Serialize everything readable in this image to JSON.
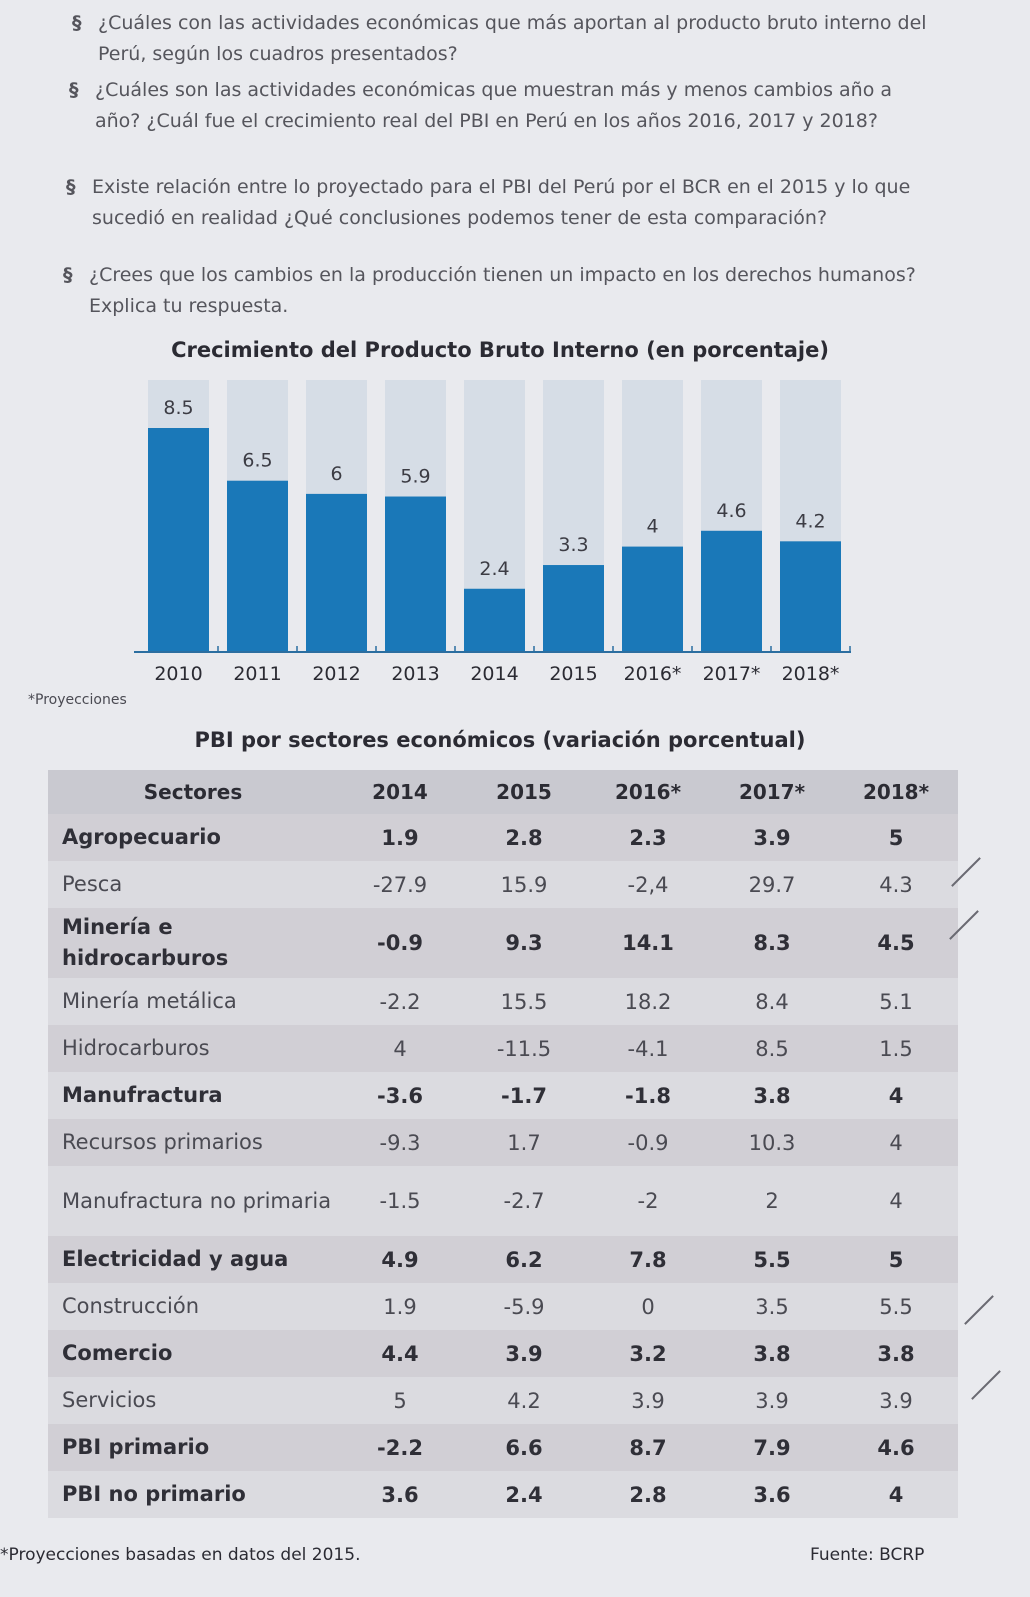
{
  "questions": {
    "bullet": "§",
    "q1": "¿Cuáles con las actividades económicas que más aportan al producto bruto interno del Perú, según los cuadros presentados?",
    "q2": "¿Cuáles son las actividades económicas que muestran más y menos cambios año a año? ¿Cuál fue el crecimiento real del PBI en Perú en los años 2016, 2017 y 2018?",
    "q3": "Existe relación entre lo proyectado para el PBI del Perú por el BCR en el 2015 y lo que sucedió en realidad ¿Qué conclusiones podemos tener de esta comparación?",
    "q4": "¿Crees que los cambios en la producción tienen un impacto en los derechos humanos? Explica tu respuesta."
  },
  "chart_data": {
    "type": "bar",
    "title": "Crecimiento del Producto Bruto Interno (en porcentaje)",
    "categories": [
      "2010",
      "2011",
      "2012",
      "2013",
      "2014",
      "2015",
      "2016*",
      "2017*",
      "2018*"
    ],
    "values": [
      8.5,
      6.5,
      6,
      5.9,
      2.4,
      3.3,
      4,
      4.6,
      4.2
    ],
    "value_labels": [
      "8.5",
      "6.5",
      "6",
      "5.9",
      "2.4",
      "3.3",
      "4",
      "4.6",
      "4.2"
    ],
    "ylim": [
      0,
      10
    ],
    "note": "*Proyecciones",
    "colors": {
      "bar": "#1a78b8",
      "track": "#d6dde6"
    }
  },
  "table": {
    "title": "PBI por sectores económicos (variación porcentual)",
    "headers": [
      "Sectores",
      "2014",
      "2015",
      "2016*",
      "2017*",
      "2018*"
    ],
    "rows": [
      {
        "sector": "Agropecuario",
        "values": [
          "1.9",
          "2.8",
          "2.3",
          "3.9",
          "5"
        ],
        "bold": true
      },
      {
        "sector": "Pesca",
        "values": [
          "-27.9",
          "15.9",
          "-2,4",
          "29.7",
          "4.3"
        ],
        "bold": false
      },
      {
        "sector": "Minería e hidrocarburos",
        "values": [
          "-0.9",
          "9.3",
          "14.1",
          "8.3",
          "4.5"
        ],
        "bold": true
      },
      {
        "sector": "Minería metálica",
        "values": [
          "-2.2",
          "15.5",
          "18.2",
          "8.4",
          "5.1"
        ],
        "bold": false
      },
      {
        "sector": "Hidrocarburos",
        "values": [
          "4",
          "-11.5",
          "-4.1",
          "8.5",
          "1.5"
        ],
        "bold": false
      },
      {
        "sector": "Manufractura",
        "values": [
          "-3.6",
          "-1.7",
          "-1.8",
          "3.8",
          "4"
        ],
        "bold": true
      },
      {
        "sector": "Recursos primarios",
        "values": [
          "-9.3",
          "1.7",
          "-0.9",
          "10.3",
          "4"
        ],
        "bold": false
      },
      {
        "sector": "Manufractura no primaria",
        "values": [
          "-1.5",
          "-2.7",
          "-2",
          "2",
          "4"
        ],
        "bold": false
      },
      {
        "sector": "Electricidad y agua",
        "values": [
          "4.9",
          "6.2",
          "7.8",
          "5.5",
          "5"
        ],
        "bold": true
      },
      {
        "sector": "Construcción",
        "values": [
          "1.9",
          "-5.9",
          "0",
          "3.5",
          "5.5"
        ],
        "bold": false
      },
      {
        "sector": "Comercio",
        "values": [
          "4.4",
          "3.9",
          "3.2",
          "3.8",
          "3.8"
        ],
        "bold": true
      },
      {
        "sector": "Servicios",
        "values": [
          "5",
          "4.2",
          "3.9",
          "3.9",
          "3.9"
        ],
        "bold": false
      },
      {
        "sector": "PBI primario",
        "values": [
          "-2.2",
          "6.6",
          "8.7",
          "7.9",
          "4.6"
        ],
        "bold": true
      },
      {
        "sector": "PBI no primario",
        "values": [
          "3.6",
          "2.4",
          "2.8",
          "3.6",
          "4"
        ],
        "bold": true
      }
    ],
    "footnote": "*Proyecciones basadas en datos del 2015.",
    "source": "Fuente: BCRP"
  }
}
